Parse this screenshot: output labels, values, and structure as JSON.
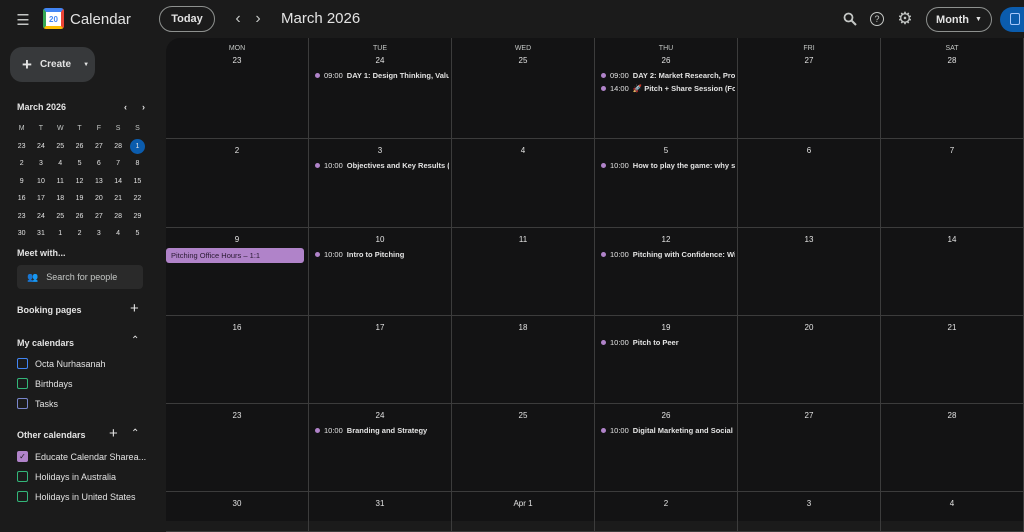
{
  "app": {
    "title": "Calendar",
    "logo_number": "20"
  },
  "header": {
    "today_label": "Today",
    "period": "March 2026",
    "view_label": "Month",
    "icons": [
      "menu-icon",
      "search-icon",
      "help-icon",
      "settings-icon",
      "chevron-left-icon",
      "chevron-right-icon"
    ]
  },
  "sidebar": {
    "create_label": "Create",
    "mini_calendar": {
      "title": "March 2026",
      "weekdays": [
        "M",
        "T",
        "W",
        "T",
        "F",
        "S",
        "S"
      ],
      "days": [
        "23",
        "24",
        "25",
        "26",
        "27",
        "28",
        "1",
        "2",
        "3",
        "4",
        "5",
        "6",
        "7",
        "8",
        "9",
        "10",
        "11",
        "12",
        "13",
        "14",
        "15",
        "16",
        "17",
        "18",
        "19",
        "20",
        "21",
        "22",
        "23",
        "24",
        "25",
        "26",
        "27",
        "28",
        "29",
        "30",
        "31",
        "1",
        "2",
        "3",
        "4",
        "5"
      ],
      "selected": "1"
    },
    "meet_with": "Meet with...",
    "search_people": "Search for people",
    "booking_pages": "Booking pages",
    "my_calendars": {
      "title": "My calendars",
      "items": [
        {
          "label": "Octa Nurhasanah",
          "color": "#4285f4",
          "checked": false
        },
        {
          "label": "Birthdays",
          "color": "#33b679",
          "checked": false
        },
        {
          "label": "Tasks",
          "color": "#7986cb",
          "checked": false
        }
      ]
    },
    "other_calendars": {
      "title": "Other calendars",
      "items": [
        {
          "label": "Educate Calendar Sharea...",
          "color": "#b083c9",
          "checked": true
        },
        {
          "label": "Holidays in Australia",
          "color": "#33b679",
          "checked": false
        },
        {
          "label": "Holidays in United States",
          "color": "#33b679",
          "checked": false
        }
      ]
    }
  },
  "calendar": {
    "weekdays": [
      "MON",
      "TUE",
      "WED",
      "THU",
      "FRI",
      "SAT"
    ],
    "weeks": [
      [
        {
          "d": "23",
          "events": []
        },
        {
          "d": "24",
          "events": [
            {
              "time": "09:00",
              "title": "DAY 1: Design Thinking, Valu"
            }
          ]
        },
        {
          "d": "25",
          "events": []
        },
        {
          "d": "26",
          "events": [
            {
              "time": "09:00",
              "title": "DAY 2: Market Research, Pro"
            },
            {
              "time": "14:00",
              "title": "🚀 Pitch + Share Session (Fo"
            }
          ]
        },
        {
          "d": "27",
          "events": []
        },
        {
          "d": "28",
          "events": []
        }
      ],
      [
        {
          "d": "2",
          "events": []
        },
        {
          "d": "3",
          "events": [
            {
              "time": "10:00",
              "title": "Objectives and Key Results ("
            }
          ]
        },
        {
          "d": "4",
          "events": []
        },
        {
          "d": "5",
          "events": [
            {
              "time": "10:00",
              "title": "How to play the game: why s"
            }
          ]
        },
        {
          "d": "6",
          "events": []
        },
        {
          "d": "7",
          "events": []
        }
      ],
      [
        {
          "d": "9",
          "events": [],
          "block": "Pitching Office Hours – 1:1"
        },
        {
          "d": "10",
          "events": [
            {
              "time": "10:00",
              "title": "Intro to Pitching"
            }
          ]
        },
        {
          "d": "11",
          "events": []
        },
        {
          "d": "12",
          "events": [
            {
              "time": "10:00",
              "title": "Pitching with Confidence: Wi"
            }
          ]
        },
        {
          "d": "13",
          "events": []
        },
        {
          "d": "14",
          "events": []
        }
      ],
      [
        {
          "d": "16",
          "events": []
        },
        {
          "d": "17",
          "events": []
        },
        {
          "d": "18",
          "events": []
        },
        {
          "d": "19",
          "events": [
            {
              "time": "10:00",
              "title": "Pitch to Peer"
            }
          ]
        },
        {
          "d": "20",
          "events": []
        },
        {
          "d": "21",
          "events": []
        }
      ],
      [
        {
          "d": "23",
          "events": []
        },
        {
          "d": "24",
          "events": [
            {
              "time": "10:00",
              "title": "Branding and Strategy"
            }
          ]
        },
        {
          "d": "25",
          "events": []
        },
        {
          "d": "26",
          "events": [
            {
              "time": "10:00",
              "title": "Digital Marketing and Social"
            }
          ]
        },
        {
          "d": "27",
          "events": []
        },
        {
          "d": "28",
          "events": []
        }
      ],
      [
        {
          "d": "30",
          "events": []
        },
        {
          "d": "31",
          "events": []
        },
        {
          "d": "Apr 1",
          "events": []
        },
        {
          "d": "2",
          "events": []
        },
        {
          "d": "3",
          "events": []
        },
        {
          "d": "4",
          "events": []
        }
      ]
    ],
    "event_color": "#b083c9",
    "today_color": "#0b5cad"
  }
}
